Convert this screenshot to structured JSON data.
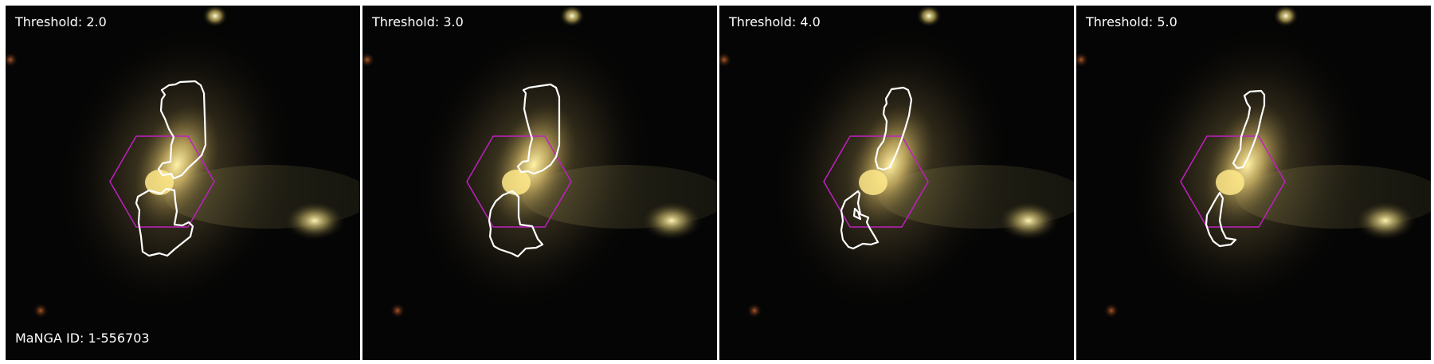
{
  "panels": [
    {
      "threshold_label": "Threshold: 2.0"
    },
    {
      "threshold_label": "Threshold: 3.0"
    },
    {
      "threshold_label": "Threshold: 4.0"
    },
    {
      "threshold_label": "Threshold: 5.0"
    }
  ],
  "manga_id_label": "MaNGA ID: 1-556703",
  "colors": {
    "background": "#000000",
    "contour": "#ffffff",
    "hexagon": "#c020c0",
    "galaxy_core": "#f6e38a"
  }
}
